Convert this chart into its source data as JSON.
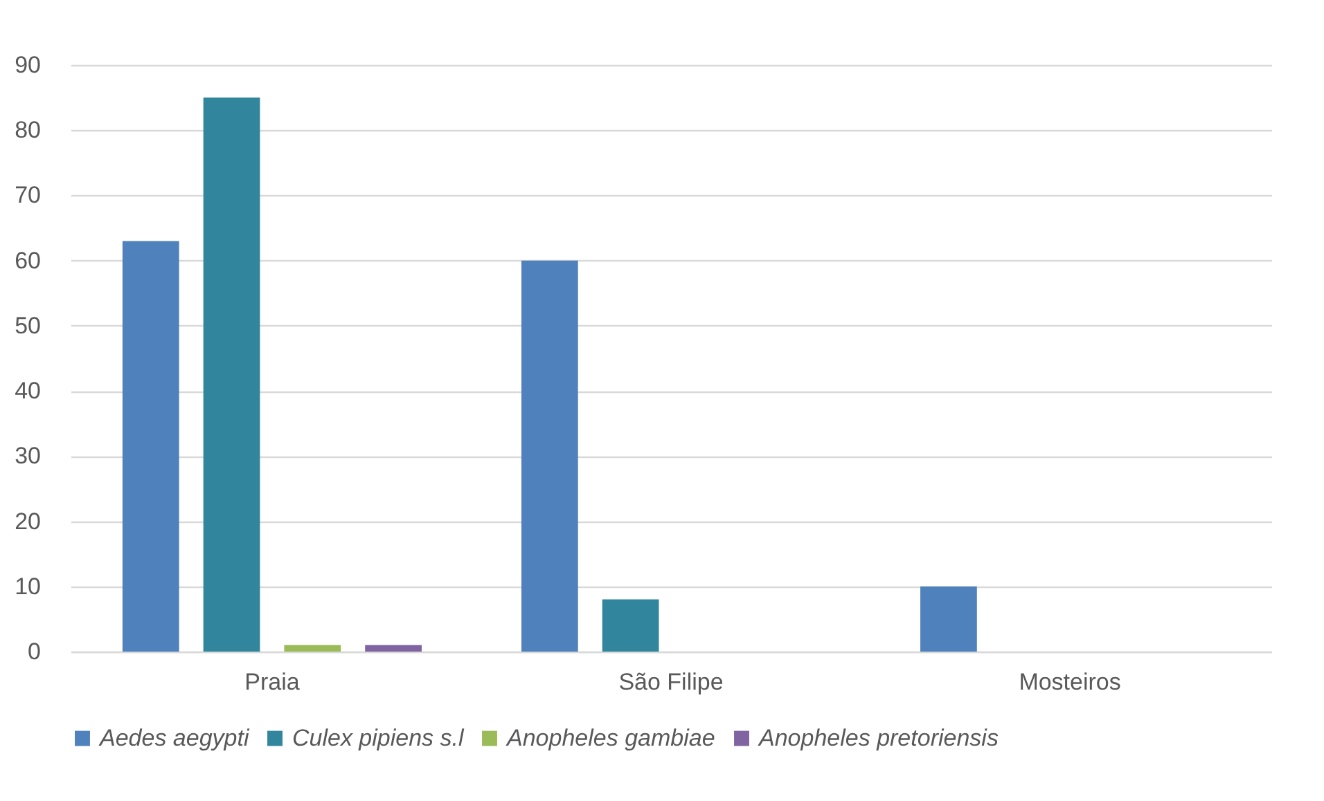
{
  "chart_data": {
    "type": "bar",
    "categories": [
      "Praia",
      "São Filipe",
      "Mosteiros"
    ],
    "series": [
      {
        "name": "Aedes aegypti",
        "color": "#4f81bd",
        "values": [
          63,
          60,
          10
        ]
      },
      {
        "name": "Culex pipiens s.l",
        "color": "#31859c",
        "values": [
          85,
          8,
          0
        ]
      },
      {
        "name": "Anopheles gambiae",
        "color": "#9bbb59",
        "values": [
          1,
          0,
          0
        ]
      },
      {
        "name": "Anopheles pretoriensis",
        "color": "#8064a2",
        "values": [
          1,
          0,
          0
        ]
      }
    ],
    "ylim": [
      0,
      90
    ],
    "yticks": [
      0,
      10,
      20,
      30,
      40,
      50,
      60,
      70,
      80,
      90
    ],
    "grid": "y",
    "legend": "bottom"
  }
}
